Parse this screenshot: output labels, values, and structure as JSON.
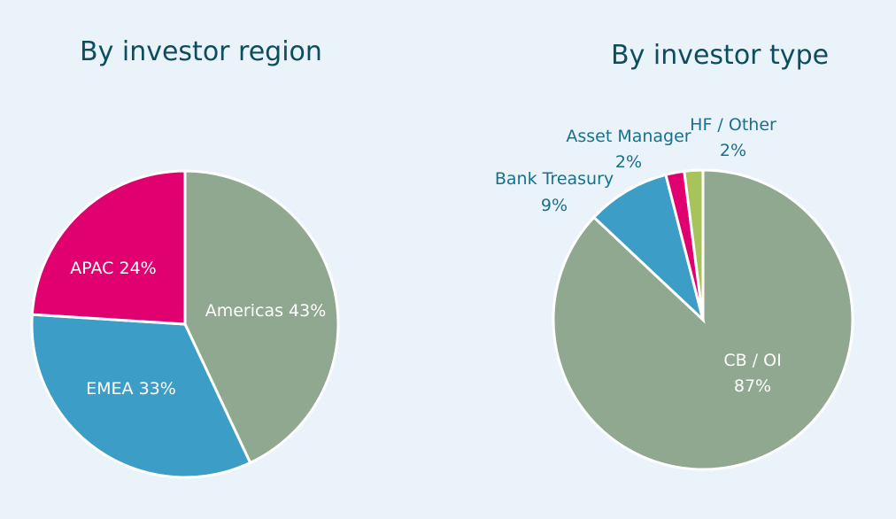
{
  "chart_data": [
    {
      "type": "pie",
      "title": "By investor region",
      "slices": [
        {
          "name": "Americas",
          "value": 43,
          "label": "Americas 43%",
          "color": "#8fa88f"
        },
        {
          "name": "EMEA",
          "value": 33,
          "label": "EMEA 33%",
          "color": "#3c9dc6"
        },
        {
          "name": "APAC",
          "value": 24,
          "label": "APAC 24%",
          "color": "#e0006f"
        }
      ]
    },
    {
      "type": "pie",
      "title": "By investor type",
      "slices": [
        {
          "name": "CB / OI",
          "value": 87,
          "label_line1": "CB / OI",
          "label_line2": "87%",
          "color": "#8fa88f"
        },
        {
          "name": "Bank Treasury",
          "value": 9,
          "label_line1": "Bank Treasury",
          "label_line2": "9%",
          "color": "#3c9dc6"
        },
        {
          "name": "Asset Manager",
          "value": 2,
          "label_line1": "Asset Manager",
          "label_line2": "2%",
          "color": "#e0006f"
        },
        {
          "name": "HF / Other",
          "value": 2,
          "label_line1": "HF / Other",
          "label_line2": "2%",
          "color": "#a6c45a"
        }
      ]
    }
  ]
}
